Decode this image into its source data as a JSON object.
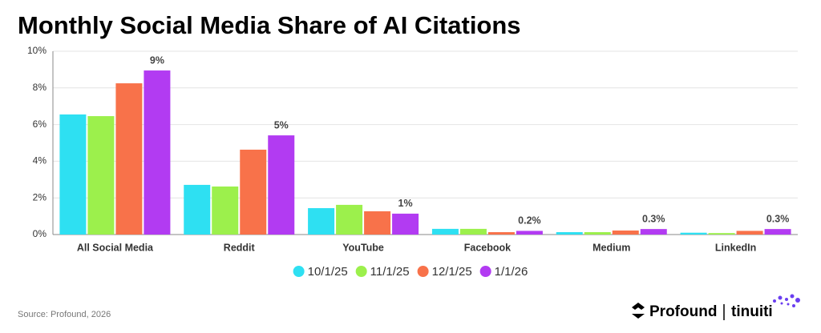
{
  "chart_data": {
    "type": "bar",
    "title": "Monthly Social Media Share of AI Citations",
    "categories": [
      "All Social Media",
      "Reddit",
      "YouTube",
      "Facebook",
      "Medium",
      "LinkedIn"
    ],
    "series": [
      {
        "name": "10/1/25",
        "color": "#2ee0f2",
        "values": [
          6.55,
          2.71,
          1.44,
          0.31,
          0.13,
          0.1
        ]
      },
      {
        "name": "11/1/25",
        "color": "#9cf04c",
        "values": [
          6.46,
          2.62,
          1.62,
          0.31,
          0.13,
          0.08
        ]
      },
      {
        "name": "12/1/25",
        "color": "#f8724a",
        "values": [
          8.25,
          4.63,
          1.27,
          0.13,
          0.22,
          0.2
        ]
      },
      {
        "name": "1/1/26",
        "color": "#b23bf2",
        "values": [
          8.95,
          5.41,
          1.14,
          0.2,
          0.3,
          0.3
        ],
        "value_labels": [
          "9%",
          "5%",
          "1%",
          "0.2%",
          "0.3%",
          "0.3%"
        ]
      }
    ],
    "ylim": [
      0,
      10
    ],
    "yticks": [
      {
        "value": 0,
        "label": "0%"
      },
      {
        "value": 2,
        "label": "2%"
      },
      {
        "value": 4,
        "label": "4%"
      },
      {
        "value": 6,
        "label": "6%"
      },
      {
        "value": 8,
        "label": "8%"
      },
      {
        "value": 10,
        "label": "10%"
      }
    ],
    "grid": true
  },
  "footer": {
    "source": "Source: Profound, 2026",
    "brand": "Profound",
    "partner": "tinuiti"
  }
}
